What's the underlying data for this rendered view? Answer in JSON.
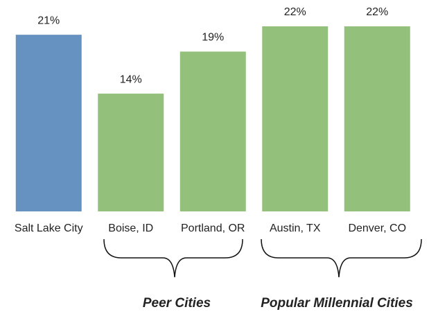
{
  "chart_data": {
    "type": "bar",
    "categories": [
      "Salt Lake City",
      "Boise, ID",
      "Portland, OR",
      "Austin, TX",
      "Denver, CO"
    ],
    "values": [
      21,
      14,
      19,
      22,
      22
    ],
    "value_labels": [
      "21%",
      "14%",
      "19%",
      "22%",
      "22%"
    ],
    "colors": [
      "#6592c0",
      "#93c17b",
      "#93c17b",
      "#93c17b",
      "#93c17b"
    ],
    "annotations": [
      "Peer Cities",
      "Popular Millennial Cities"
    ]
  }
}
